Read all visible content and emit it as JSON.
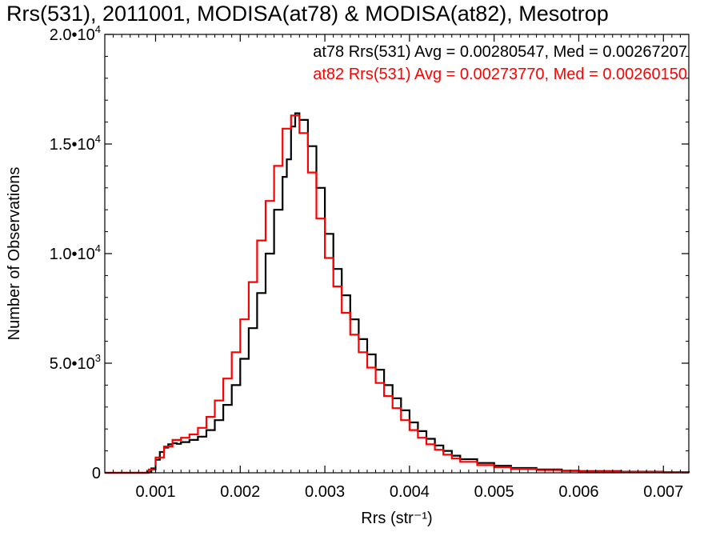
{
  "title": "Rrs(531), 2011001, MODISA(at78) & MODISA(at82), Mesotrop",
  "chart_data": {
    "type": "line",
    "step": true,
    "xlabel": "Rrs (str⁻¹)",
    "ylabel": "Number of Observations",
    "xlim": [
      0.0004,
      0.0073
    ],
    "ylim": [
      0,
      20000
    ],
    "xticks": [
      {
        "value": 0.001,
        "label": "0.001"
      },
      {
        "value": 0.002,
        "label": "0.002"
      },
      {
        "value": 0.003,
        "label": "0.003"
      },
      {
        "value": 0.004,
        "label": "0.004"
      },
      {
        "value": 0.005,
        "label": "0.005"
      },
      {
        "value": 0.006,
        "label": "0.006"
      },
      {
        "value": 0.007,
        "label": "0.007"
      }
    ],
    "yticks": [
      {
        "value": 0,
        "mant": "0",
        "exp": ""
      },
      {
        "value": 5000,
        "mant": "5.0•10",
        "exp": "3"
      },
      {
        "value": 10000,
        "mant": "1.0•10",
        "exp": "4"
      },
      {
        "value": 15000,
        "mant": "1.5•10",
        "exp": "4"
      },
      {
        "value": 20000,
        "mant": "2.0•10",
        "exp": "4"
      }
    ],
    "annotations": [
      {
        "text": "at78 Rrs(531) Avg = 0.00280547, Med = 0.00267207",
        "color": "#000000"
      },
      {
        "text": "at82 Rrs(531) Avg = 0.00273770, Med = 0.00260150",
        "color": "#ff0000"
      }
    ],
    "series": [
      {
        "color": "#000000",
        "x": [
          0.0004,
          0.0008,
          0.0009,
          0.00095,
          0.001,
          0.00105,
          0.0011,
          0.00115,
          0.0012,
          0.00125,
          0.0013,
          0.0014,
          0.0015,
          0.0016,
          0.0017,
          0.0018,
          0.0019,
          0.002,
          0.0021,
          0.0022,
          0.0023,
          0.0024,
          0.0025,
          0.00255,
          0.0026,
          0.00265,
          0.0027,
          0.0028,
          0.0029,
          0.003,
          0.0031,
          0.0032,
          0.0033,
          0.0034,
          0.0035,
          0.0036,
          0.0037,
          0.0038,
          0.0039,
          0.004,
          0.0041,
          0.0042,
          0.0043,
          0.0044,
          0.0045,
          0.0046,
          0.0048,
          0.005,
          0.0052,
          0.0055,
          0.0058,
          0.006,
          0.0065,
          0.007,
          0.0073
        ],
        "values": [
          0,
          0,
          50,
          200,
          600,
          950,
          1150,
          1300,
          1350,
          1320,
          1400,
          1500,
          1650,
          1950,
          2400,
          3100,
          4000,
          5200,
          6600,
          8200,
          10000,
          12000,
          13500,
          14300,
          15800,
          16400,
          16100,
          14900,
          13000,
          10900,
          9300,
          8100,
          7000,
          6100,
          5400,
          4700,
          4000,
          3400,
          2850,
          2300,
          1900,
          1550,
          1250,
          1000,
          780,
          620,
          450,
          320,
          220,
          150,
          100,
          80,
          50,
          30,
          10
        ]
      },
      {
        "color": "#ff0000",
        "x": [
          0.0004,
          0.00085,
          0.00092,
          0.001,
          0.0011,
          0.0012,
          0.0013,
          0.0014,
          0.0015,
          0.0016,
          0.0017,
          0.0018,
          0.0019,
          0.002,
          0.0021,
          0.0022,
          0.0023,
          0.0024,
          0.0025,
          0.0026,
          0.0027,
          0.0028,
          0.0029,
          0.003,
          0.0031,
          0.0032,
          0.0033,
          0.0034,
          0.0035,
          0.0036,
          0.0037,
          0.0038,
          0.0039,
          0.004,
          0.0041,
          0.0042,
          0.0043,
          0.0044,
          0.0045,
          0.0046,
          0.0048,
          0.005,
          0.0052,
          0.0055,
          0.0058,
          0.006,
          0.0065,
          0.007,
          0.0073
        ],
        "values": [
          0,
          0,
          150,
          700,
          1200,
          1500,
          1600,
          1750,
          2050,
          2550,
          3300,
          4300,
          5500,
          7000,
          8700,
          10600,
          12400,
          14000,
          15700,
          16300,
          15500,
          13700,
          11600,
          9800,
          8500,
          7300,
          6300,
          5500,
          4800,
          4100,
          3500,
          2950,
          2400,
          1950,
          1600,
          1300,
          1050,
          830,
          650,
          500,
          350,
          260,
          180,
          120,
          80,
          60,
          40,
          20,
          10
        ]
      }
    ]
  }
}
